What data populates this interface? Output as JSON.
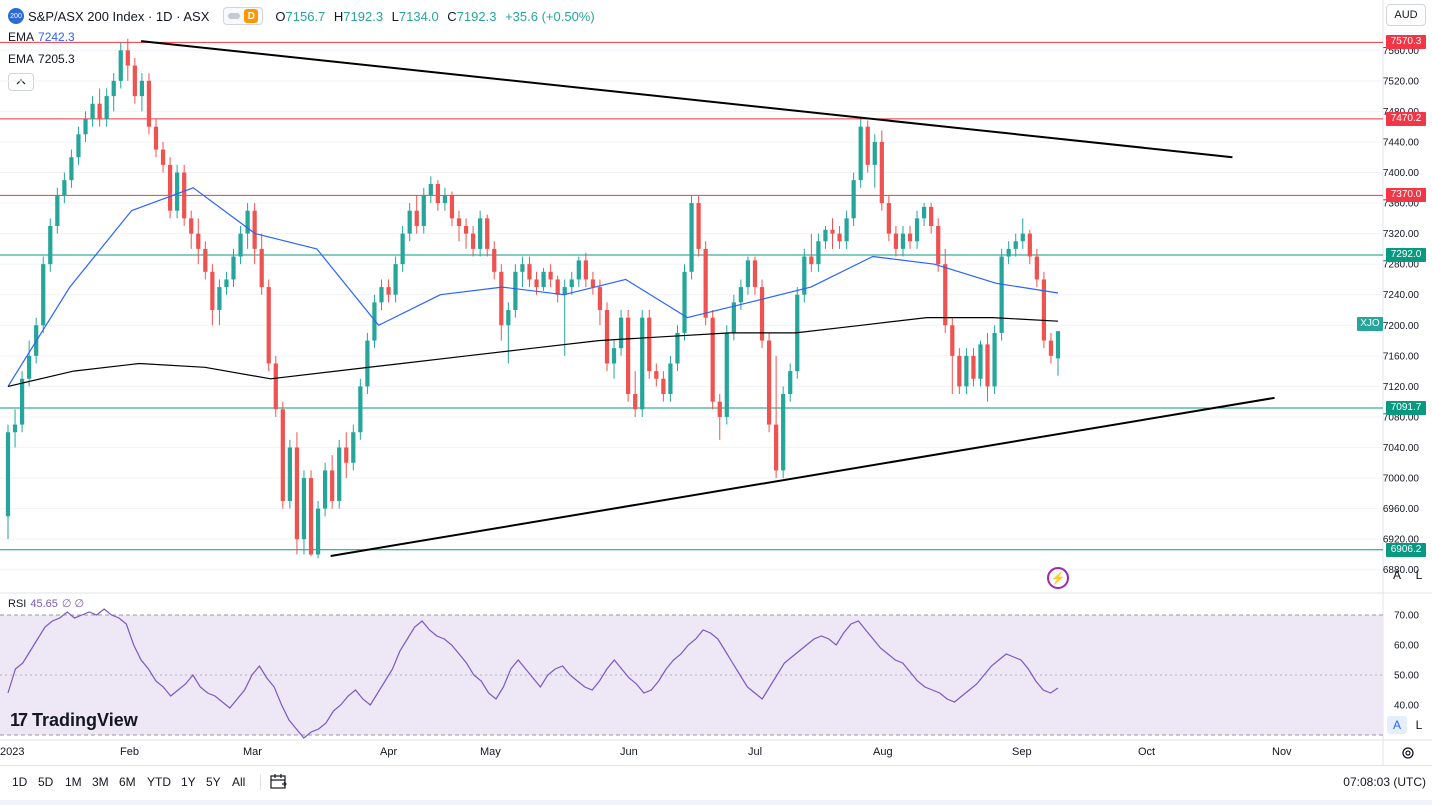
{
  "header": {
    "symbol_badge": "200",
    "title": "S&P/ASX 200 Index · 1D · ASX",
    "interval_badge": "D",
    "ohlc": [
      {
        "key": "O",
        "value": "7156.7"
      },
      {
        "key": "H",
        "value": "7192.3"
      },
      {
        "key": "L",
        "value": "7134.0"
      },
      {
        "key": "C",
        "value": "7192.3"
      }
    ],
    "change": "+35.6 (+0.50%)",
    "currency": "AUD"
  },
  "indicators": {
    "ema1_label": "EMA",
    "ema1_value": "7242.3",
    "ema2_label": "EMA",
    "ema2_value": "7205.3",
    "rsi_label": "RSI",
    "rsi_value": "45.65",
    "rsi_params": "∅ ∅"
  },
  "axis_buttons": {
    "auto": "A",
    "log": "L"
  },
  "logo_text": "TradingView",
  "symbol_tag": "XJO",
  "timeframes": [
    "1D",
    "5D",
    "1M",
    "3M",
    "6M",
    "YTD",
    "1Y",
    "5Y",
    "All"
  ],
  "clock": "07:08:03 (UTC)",
  "colors": {
    "up": "#26a69a",
    "down": "#ef5350",
    "ema_fast": "#2962ff",
    "ema_slow": "#000000",
    "res_line": "#f23645",
    "sup_line": "#089981",
    "rsi_line": "#7e57c2",
    "rsi_band": "#ede7f6"
  },
  "chart_data": {
    "type": "candlestick",
    "price_axis": {
      "min": 6860,
      "max": 7580,
      "ticks": [
        6880,
        6920,
        6960,
        7000,
        7040,
        7080,
        7120,
        7160,
        7200,
        7240,
        7280,
        7320,
        7360,
        7400,
        7440,
        7480,
        7520,
        7560
      ]
    },
    "x_axis_labels": [
      "2023",
      "Feb",
      "Mar",
      "Apr",
      "May",
      "Jun",
      "Jul",
      "Aug",
      "Sep",
      "Oct",
      "Nov"
    ],
    "horizontal_levels": [
      {
        "value": 7570.3,
        "label": "7570.3",
        "kind": "resistance"
      },
      {
        "value": 7470.2,
        "label": "7470.2",
        "kind": "resistance"
      },
      {
        "value": 7370.0,
        "label": "7370.0",
        "kind": "resistance"
      },
      {
        "value": 7292.0,
        "label": "7292.0",
        "kind": "support"
      },
      {
        "value": 7091.7,
        "label": "7091.7",
        "kind": "support"
      },
      {
        "value": 6906.2,
        "label": "6906.2",
        "kind": "support"
      }
    ],
    "trendlines": [
      {
        "from": {
          "date": "2023-02-03",
          "price": 7572
        },
        "to": {
          "date": "2023-10-20",
          "price": 7420
        }
      },
      {
        "from": {
          "date": "2023-03-20",
          "price": 6898
        },
        "to": {
          "date": "2023-10-30",
          "price": 7105
        }
      }
    ],
    "candles": [
      {
        "o": 6950,
        "h": 7070,
        "l": 6920,
        "c": 7060
      },
      {
        "o": 7060,
        "h": 7090,
        "l": 7040,
        "c": 7070
      },
      {
        "o": 7070,
        "h": 7140,
        "l": 7060,
        "c": 7130
      },
      {
        "o": 7130,
        "h": 7180,
        "l": 7120,
        "c": 7160
      },
      {
        "o": 7160,
        "h": 7210,
        "l": 7150,
        "c": 7200
      },
      {
        "o": 7200,
        "h": 7290,
        "l": 7190,
        "c": 7280
      },
      {
        "o": 7280,
        "h": 7340,
        "l": 7270,
        "c": 7330
      },
      {
        "o": 7330,
        "h": 7380,
        "l": 7320,
        "c": 7370
      },
      {
        "o": 7370,
        "h": 7400,
        "l": 7360,
        "c": 7390
      },
      {
        "o": 7390,
        "h": 7430,
        "l": 7380,
        "c": 7420
      },
      {
        "o": 7420,
        "h": 7460,
        "l": 7410,
        "c": 7450
      },
      {
        "o": 7450,
        "h": 7480,
        "l": 7440,
        "c": 7470
      },
      {
        "o": 7470,
        "h": 7500,
        "l": 7460,
        "c": 7490
      },
      {
        "o": 7490,
        "h": 7510,
        "l": 7460,
        "c": 7470
      },
      {
        "o": 7470,
        "h": 7510,
        "l": 7460,
        "c": 7500
      },
      {
        "o": 7500,
        "h": 7530,
        "l": 7480,
        "c": 7520
      },
      {
        "o": 7520,
        "h": 7570,
        "l": 7510,
        "c": 7560
      },
      {
        "o": 7560,
        "h": 7575,
        "l": 7520,
        "c": 7540
      },
      {
        "o": 7540,
        "h": 7550,
        "l": 7490,
        "c": 7500
      },
      {
        "o": 7500,
        "h": 7530,
        "l": 7480,
        "c": 7520
      },
      {
        "o": 7520,
        "h": 7530,
        "l": 7450,
        "c": 7460
      },
      {
        "o": 7460,
        "h": 7470,
        "l": 7420,
        "c": 7430
      },
      {
        "o": 7430,
        "h": 7440,
        "l": 7400,
        "c": 7410
      },
      {
        "o": 7410,
        "h": 7420,
        "l": 7340,
        "c": 7350
      },
      {
        "o": 7350,
        "h": 7410,
        "l": 7340,
        "c": 7400
      },
      {
        "o": 7400,
        "h": 7410,
        "l": 7330,
        "c": 7340
      },
      {
        "o": 7340,
        "h": 7350,
        "l": 7300,
        "c": 7320
      },
      {
        "o": 7320,
        "h": 7340,
        "l": 7280,
        "c": 7300
      },
      {
        "o": 7300,
        "h": 7310,
        "l": 7260,
        "c": 7270
      },
      {
        "o": 7270,
        "h": 7280,
        "l": 7200,
        "c": 7220
      },
      {
        "o": 7220,
        "h": 7260,
        "l": 7200,
        "c": 7250
      },
      {
        "o": 7250,
        "h": 7270,
        "l": 7240,
        "c": 7260
      },
      {
        "o": 7260,
        "h": 7300,
        "l": 7250,
        "c": 7290
      },
      {
        "o": 7290,
        "h": 7330,
        "l": 7280,
        "c": 7320
      },
      {
        "o": 7320,
        "h": 7360,
        "l": 7300,
        "c": 7350
      },
      {
        "o": 7350,
        "h": 7360,
        "l": 7280,
        "c": 7300
      },
      {
        "o": 7300,
        "h": 7320,
        "l": 7240,
        "c": 7250
      },
      {
        "o": 7250,
        "h": 7260,
        "l": 7140,
        "c": 7150
      },
      {
        "o": 7150,
        "h": 7160,
        "l": 7080,
        "c": 7090
      },
      {
        "o": 7090,
        "h": 7100,
        "l": 6960,
        "c": 6970
      },
      {
        "o": 6970,
        "h": 7050,
        "l": 6960,
        "c": 7040
      },
      {
        "o": 7040,
        "h": 7060,
        "l": 6900,
        "c": 6920
      },
      {
        "o": 6920,
        "h": 7010,
        "l": 6900,
        "c": 7000
      },
      {
        "o": 7000,
        "h": 7010,
        "l": 6898,
        "c": 6900
      },
      {
        "o": 6900,
        "h": 6970,
        "l": 6895,
        "c": 6960
      },
      {
        "o": 6960,
        "h": 7020,
        "l": 6950,
        "c": 7010
      },
      {
        "o": 7010,
        "h": 7030,
        "l": 6960,
        "c": 6970
      },
      {
        "o": 6970,
        "h": 7050,
        "l": 6960,
        "c": 7040
      },
      {
        "o": 7040,
        "h": 7060,
        "l": 7000,
        "c": 7020
      },
      {
        "o": 7020,
        "h": 7070,
        "l": 7010,
        "c": 7060
      },
      {
        "o": 7060,
        "h": 7130,
        "l": 7050,
        "c": 7120
      },
      {
        "o": 7120,
        "h": 7190,
        "l": 7110,
        "c": 7180
      },
      {
        "o": 7180,
        "h": 7240,
        "l": 7170,
        "c": 7230
      },
      {
        "o": 7230,
        "h": 7260,
        "l": 7220,
        "c": 7250
      },
      {
        "o": 7250,
        "h": 7260,
        "l": 7230,
        "c": 7240
      },
      {
        "o": 7240,
        "h": 7290,
        "l": 7230,
        "c": 7280
      },
      {
        "o": 7280,
        "h": 7330,
        "l": 7270,
        "c": 7320
      },
      {
        "o": 7320,
        "h": 7360,
        "l": 7310,
        "c": 7350
      },
      {
        "o": 7350,
        "h": 7370,
        "l": 7320,
        "c": 7330
      },
      {
        "o": 7330,
        "h": 7380,
        "l": 7320,
        "c": 7370
      },
      {
        "o": 7370,
        "h": 7395,
        "l": 7360,
        "c": 7385
      },
      {
        "o": 7385,
        "h": 7390,
        "l": 7350,
        "c": 7360
      },
      {
        "o": 7360,
        "h": 7380,
        "l": 7350,
        "c": 7370
      },
      {
        "o": 7370,
        "h": 7375,
        "l": 7330,
        "c": 7340
      },
      {
        "o": 7340,
        "h": 7350,
        "l": 7310,
        "c": 7330
      },
      {
        "o": 7330,
        "h": 7340,
        "l": 7300,
        "c": 7320
      },
      {
        "o": 7320,
        "h": 7330,
        "l": 7290,
        "c": 7300
      },
      {
        "o": 7300,
        "h": 7350,
        "l": 7290,
        "c": 7340
      },
      {
        "o": 7340,
        "h": 7345,
        "l": 7290,
        "c": 7300
      },
      {
        "o": 7300,
        "h": 7310,
        "l": 7260,
        "c": 7270
      },
      {
        "o": 7270,
        "h": 7280,
        "l": 7180,
        "c": 7200
      },
      {
        "o": 7200,
        "h": 7230,
        "l": 7150,
        "c": 7220
      },
      {
        "o": 7220,
        "h": 7280,
        "l": 7210,
        "c": 7270
      },
      {
        "o": 7270,
        "h": 7290,
        "l": 7250,
        "c": 7280
      },
      {
        "o": 7280,
        "h": 7290,
        "l": 7250,
        "c": 7260
      },
      {
        "o": 7260,
        "h": 7270,
        "l": 7240,
        "c": 7250
      },
      {
        "o": 7250,
        "h": 7275,
        "l": 7245,
        "c": 7270
      },
      {
        "o": 7270,
        "h": 7280,
        "l": 7250,
        "c": 7260
      },
      {
        "o": 7260,
        "h": 7265,
        "l": 7230,
        "c": 7240
      },
      {
        "o": 7240,
        "h": 7260,
        "l": 7160,
        "c": 7250
      },
      {
        "o": 7250,
        "h": 7270,
        "l": 7240,
        "c": 7260
      },
      {
        "o": 7260,
        "h": 7290,
        "l": 7250,
        "c": 7285
      },
      {
        "o": 7285,
        "h": 7295,
        "l": 7250,
        "c": 7260
      },
      {
        "o": 7260,
        "h": 7270,
        "l": 7240,
        "c": 7250
      },
      {
        "o": 7250,
        "h": 7260,
        "l": 7200,
        "c": 7220
      },
      {
        "o": 7220,
        "h": 7230,
        "l": 7140,
        "c": 7150
      },
      {
        "o": 7150,
        "h": 7180,
        "l": 7130,
        "c": 7170
      },
      {
        "o": 7170,
        "h": 7220,
        "l": 7160,
        "c": 7210
      },
      {
        "o": 7210,
        "h": 7220,
        "l": 7100,
        "c": 7110
      },
      {
        "o": 7110,
        "h": 7140,
        "l": 7080,
        "c": 7090
      },
      {
        "o": 7090,
        "h": 7220,
        "l": 7080,
        "c": 7210
      },
      {
        "o": 7210,
        "h": 7220,
        "l": 7130,
        "c": 7140
      },
      {
        "o": 7140,
        "h": 7150,
        "l": 7120,
        "c": 7130
      },
      {
        "o": 7130,
        "h": 7140,
        "l": 7100,
        "c": 7110
      },
      {
        "o": 7110,
        "h": 7160,
        "l": 7100,
        "c": 7150
      },
      {
        "o": 7150,
        "h": 7200,
        "l": 7140,
        "c": 7190
      },
      {
        "o": 7190,
        "h": 7280,
        "l": 7180,
        "c": 7270
      },
      {
        "o": 7270,
        "h": 7370,
        "l": 7260,
        "c": 7360
      },
      {
        "o": 7360,
        "h": 7370,
        "l": 7290,
        "c": 7300
      },
      {
        "o": 7300,
        "h": 7310,
        "l": 7200,
        "c": 7210
      },
      {
        "o": 7210,
        "h": 7220,
        "l": 7090,
        "c": 7100
      },
      {
        "o": 7100,
        "h": 7110,
        "l": 7050,
        "c": 7080
      },
      {
        "o": 7080,
        "h": 7200,
        "l": 7070,
        "c": 7190
      },
      {
        "o": 7190,
        "h": 7240,
        "l": 7180,
        "c": 7230
      },
      {
        "o": 7230,
        "h": 7260,
        "l": 7220,
        "c": 7250
      },
      {
        "o": 7250,
        "h": 7290,
        "l": 7240,
        "c": 7285
      },
      {
        "o": 7285,
        "h": 7290,
        "l": 7240,
        "c": 7250
      },
      {
        "o": 7250,
        "h": 7260,
        "l": 7170,
        "c": 7180
      },
      {
        "o": 7180,
        "h": 7190,
        "l": 7060,
        "c": 7070
      },
      {
        "o": 7070,
        "h": 7160,
        "l": 7000,
        "c": 7010
      },
      {
        "o": 7010,
        "h": 7120,
        "l": 7000,
        "c": 7110
      },
      {
        "o": 7110,
        "h": 7150,
        "l": 7100,
        "c": 7140
      },
      {
        "o": 7140,
        "h": 7250,
        "l": 7130,
        "c": 7240
      },
      {
        "o": 7240,
        "h": 7300,
        "l": 7230,
        "c": 7290
      },
      {
        "o": 7290,
        "h": 7320,
        "l": 7270,
        "c": 7280
      },
      {
        "o": 7280,
        "h": 7320,
        "l": 7270,
        "c": 7310
      },
      {
        "o": 7310,
        "h": 7330,
        "l": 7300,
        "c": 7325
      },
      {
        "o": 7325,
        "h": 7340,
        "l": 7300,
        "c": 7320
      },
      {
        "o": 7320,
        "h": 7330,
        "l": 7300,
        "c": 7310
      },
      {
        "o": 7310,
        "h": 7350,
        "l": 7300,
        "c": 7340
      },
      {
        "o": 7340,
        "h": 7400,
        "l": 7330,
        "c": 7390
      },
      {
        "o": 7390,
        "h": 7470,
        "l": 7380,
        "c": 7460
      },
      {
        "o": 7460,
        "h": 7468,
        "l": 7400,
        "c": 7410
      },
      {
        "o": 7410,
        "h": 7450,
        "l": 7380,
        "c": 7440
      },
      {
        "o": 7440,
        "h": 7455,
        "l": 7350,
        "c": 7360
      },
      {
        "o": 7360,
        "h": 7370,
        "l": 7310,
        "c": 7320
      },
      {
        "o": 7320,
        "h": 7330,
        "l": 7290,
        "c": 7300
      },
      {
        "o": 7300,
        "h": 7330,
        "l": 7290,
        "c": 7320
      },
      {
        "o": 7320,
        "h": 7330,
        "l": 7300,
        "c": 7310
      },
      {
        "o": 7310,
        "h": 7350,
        "l": 7300,
        "c": 7340
      },
      {
        "o": 7340,
        "h": 7360,
        "l": 7330,
        "c": 7355
      },
      {
        "o": 7355,
        "h": 7360,
        "l": 7320,
        "c": 7330
      },
      {
        "o": 7330,
        "h": 7340,
        "l": 7270,
        "c": 7280
      },
      {
        "o": 7280,
        "h": 7300,
        "l": 7190,
        "c": 7200
      },
      {
        "o": 7200,
        "h": 7210,
        "l": 7110,
        "c": 7160
      },
      {
        "o": 7160,
        "h": 7170,
        "l": 7110,
        "c": 7120
      },
      {
        "o": 7120,
        "h": 7170,
        "l": 7110,
        "c": 7160
      },
      {
        "o": 7160,
        "h": 7170,
        "l": 7120,
        "c": 7130
      },
      {
        "o": 7130,
        "h": 7180,
        "l": 7120,
        "c": 7175
      },
      {
        "o": 7175,
        "h": 7190,
        "l": 7100,
        "c": 7120
      },
      {
        "o": 7120,
        "h": 7200,
        "l": 7110,
        "c": 7190
      },
      {
        "o": 7190,
        "h": 7300,
        "l": 7180,
        "c": 7290
      },
      {
        "o": 7290,
        "h": 7310,
        "l": 7280,
        "c": 7300
      },
      {
        "o": 7300,
        "h": 7320,
        "l": 7290,
        "c": 7310
      },
      {
        "o": 7310,
        "h": 7340,
        "l": 7300,
        "c": 7320
      },
      {
        "o": 7320,
        "h": 7325,
        "l": 7280,
        "c": 7290
      },
      {
        "o": 7290,
        "h": 7300,
        "l": 7250,
        "c": 7260
      },
      {
        "o": 7260,
        "h": 7270,
        "l": 7170,
        "c": 7180
      },
      {
        "o": 7180,
        "h": 7190,
        "l": 7150,
        "c": 7160
      },
      {
        "o": 7156.7,
        "h": 7192.3,
        "l": 7134.0,
        "c": 7192.3
      }
    ],
    "ema_fast": [
      7120,
      7250,
      7350,
      7380,
      7320,
      7300,
      7200,
      7240,
      7250,
      7240,
      7260,
      7210,
      7230,
      7250,
      7290,
      7280,
      7255,
      7242.3
    ],
    "ema_slow": [
      7120,
      7140,
      7150,
      7145,
      7130,
      7140,
      7150,
      7160,
      7170,
      7180,
      7185,
      7190,
      7190,
      7200,
      7210,
      7210,
      7205.3
    ],
    "rsi": {
      "levels": [
        70,
        60,
        50,
        40
      ],
      "values": [
        44,
        52,
        54,
        58,
        62,
        66,
        68,
        69,
        71,
        69,
        70,
        71,
        70,
        72,
        70,
        69,
        67,
        60,
        55,
        52,
        48,
        46,
        43,
        45,
        47,
        50,
        46,
        44,
        43,
        41,
        39,
        42,
        45,
        50,
        53,
        49,
        46,
        40,
        35,
        32,
        29,
        31,
        32,
        34,
        38,
        40,
        43,
        45,
        42,
        40,
        44,
        48,
        52,
        58,
        62,
        66,
        68,
        65,
        63,
        62,
        60,
        57,
        54,
        50,
        48,
        44,
        42,
        46,
        52,
        55,
        52,
        49,
        46,
        50,
        52,
        53,
        50,
        48,
        46,
        45,
        48,
        52,
        55,
        52,
        49,
        47,
        44,
        45,
        48,
        52,
        55,
        57,
        60,
        62,
        65,
        64,
        62,
        58,
        54,
        50,
        46,
        44,
        42,
        46,
        50,
        54,
        56,
        58,
        60,
        62,
        63,
        62,
        60,
        64,
        67,
        68,
        65,
        62,
        59,
        57,
        55,
        54,
        51,
        48,
        46,
        45,
        44,
        42,
        41,
        43,
        45,
        47,
        50,
        53,
        55,
        57,
        56,
        55,
        52,
        48,
        45,
        44,
        45.65
      ],
      "range": [
        30,
        75
      ]
    }
  }
}
